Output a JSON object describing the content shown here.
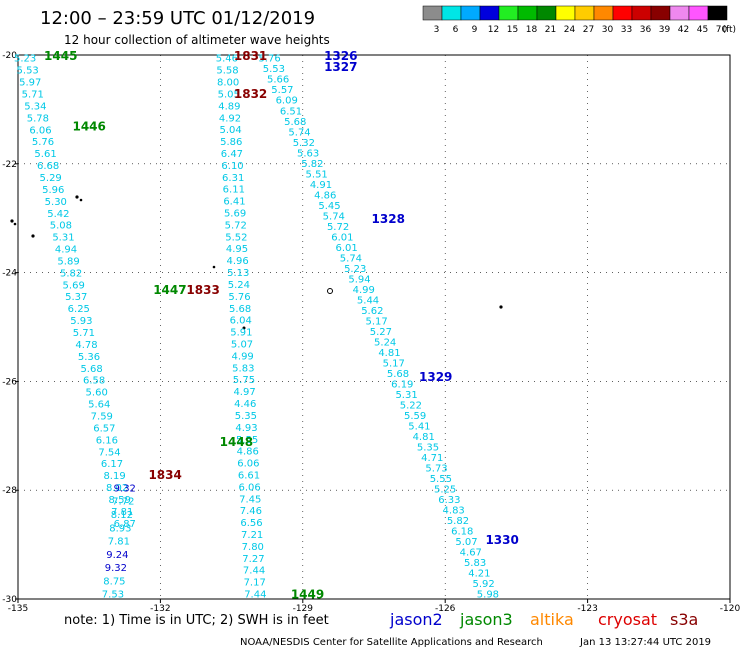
{
  "title": "12:00 – 23:59 UTC 01/12/2019",
  "subtitle": "12 hour collection of altimeter wave heights",
  "legend": {
    "unit": "(ft)",
    "items": [
      {
        "label": "3",
        "color": "#8c8c8c"
      },
      {
        "label": "6",
        "color": "#00e6e6"
      },
      {
        "label": "9",
        "color": "#00aaff"
      },
      {
        "label": "12",
        "color": "#0000dd"
      },
      {
        "label": "15",
        "color": "#22ee22"
      },
      {
        "label": "18",
        "color": "#00bb00"
      },
      {
        "label": "21",
        "color": "#008800"
      },
      {
        "label": "24",
        "color": "#ffff00"
      },
      {
        "label": "27",
        "color": "#ffcc00"
      },
      {
        "label": "30",
        "color": "#ff8800"
      },
      {
        "label": "33",
        "color": "#ff0000"
      },
      {
        "label": "36",
        "color": "#cc0000"
      },
      {
        "label": "39",
        "color": "#880000"
      },
      {
        "label": "42",
        "color": "#ee88ee"
      },
      {
        "label": "45",
        "color": "#ff55ff"
      },
      {
        "label": "70",
        "color": "#000000"
      }
    ]
  },
  "axes": {
    "lon_ticks": [
      "-135",
      "-132",
      "-129",
      "-126",
      "-123",
      "-120"
    ],
    "lat_ticks": [
      "-20",
      "-22",
      "-24",
      "-26",
      "-28",
      "-30"
    ]
  },
  "colors": {
    "cyan": "#00c8e6",
    "blue": "#0000cc",
    "green": "#008800",
    "darkred": "#880000",
    "orange": "#ff8800",
    "red": "#dd0000"
  },
  "pass_labels": [
    {
      "text": "1445",
      "color": "green",
      "x": -134.1,
      "y": -20.0
    },
    {
      "text": "1446",
      "color": "green",
      "x": -133.5,
      "y": -21.3
    },
    {
      "text": "1447",
      "color": "green",
      "x": -131.8,
      "y": -24.3
    },
    {
      "text": "1448",
      "color": "green",
      "x": -130.4,
      "y": -27.1
    },
    {
      "text": "1449",
      "color": "green",
      "x": -128.9,
      "y": -29.9
    },
    {
      "text": "1831",
      "color": "darkred",
      "x": -130.1,
      "y": -20.0
    },
    {
      "text": "1832",
      "color": "darkred",
      "x": -130.1,
      "y": -20.7
    },
    {
      "text": "1833",
      "color": "darkred",
      "x": -131.1,
      "y": -24.3
    },
    {
      "text": "1834",
      "color": "darkred",
      "x": -131.9,
      "y": -27.7
    },
    {
      "text": "1326",
      "color": "blue",
      "x": -128.2,
      "y": -20.0
    },
    {
      "text": "1327",
      "color": "blue",
      "x": -128.2,
      "y": -20.2
    },
    {
      "text": "1328",
      "color": "blue",
      "x": -127.2,
      "y": -23.0
    },
    {
      "text": "1329",
      "color": "blue",
      "x": -126.2,
      "y": -25.9
    },
    {
      "text": "1330",
      "color": "blue",
      "x": -124.8,
      "y": -28.9
    }
  ],
  "tracks": [
    {
      "name": "cryosat-north",
      "color": "cyan",
      "lon": [
        -130.6,
        -130.0
      ],
      "lat": [
        -20.05,
        -29.9
      ],
      "values": [
        "5.46",
        "5.58",
        "8.00",
        "5.05",
        "4.89",
        "4.92",
        "5.04",
        "5.86",
        "6.47",
        "6.10",
        "6.31",
        "6.11",
        "6.41",
        "5.69",
        "5.72",
        "5.52",
        "4.95",
        "4.96",
        "5.13",
        "5.24",
        "5.76",
        "5.68",
        "6.04",
        "5.91",
        "5.07",
        "4.99",
        "5.83",
        "5.75",
        "4.97",
        "4.46",
        "5.35",
        "4.93",
        "5.55",
        "4.86",
        "6.06",
        "6.61",
        "6.06",
        "7.45",
        "7.46",
        "6.56",
        "7.21",
        "7.80",
        "7.27",
        "7.44",
        "7.17",
        "7.44"
      ],
      "value_colors": {
        "7": "cyan"
      }
    },
    {
      "name": "jason3-a",
      "color": "cyan",
      "lon": [
        -134.85,
        -132.75
      ],
      "lat": [
        -20.05,
        -28.6
      ],
      "values": [
        "5.23",
        "5.53",
        "5.97",
        "5.71",
        "5.34",
        "5.78",
        "6.06",
        "5.76",
        "5.61",
        "6.68",
        "5.29",
        "5.96",
        "5.30",
        "5.42",
        "5.08",
        "5.31",
        "4.94",
        "5.89",
        "5.82",
        "5.69",
        "5.37",
        "6.25",
        "5.93",
        "5.71",
        "4.78",
        "5.36",
        "5.68",
        "6.58",
        "5.60",
        "5.64",
        "7.59",
        "6.57",
        "6.16",
        "7.54",
        "6.17",
        "8.19",
        "8.02",
        "8.59",
        "7.81",
        "6.87"
      ],
      "value_colors": {
        "33": "cyan"
      }
    },
    {
      "name": "jason2-a",
      "color": "blue",
      "lon": [
        -132.75,
        -133.0
      ],
      "lat": [
        -27.95,
        -29.9
      ],
      "values": [
        "9.32",
        "7.72",
        "8.12",
        "8.93",
        "7.81",
        "9.24",
        "9.32",
        "8.75",
        "7.53"
      ],
      "value_colors": {
        "0": "blue",
        "1": "cyan",
        "2": "cyan",
        "3": "cyan",
        "4": "cyan",
        "5": "blue",
        "6": "blue",
        "7": "cyan",
        "8": "cyan"
      }
    },
    {
      "name": "jason2-b",
      "color": "cyan",
      "lon": [
        -129.7,
        -125.1
      ],
      "lat": [
        -20.05,
        -29.9
      ],
      "values": [
        "5.76",
        "5.53",
        "5.66",
        "5.57",
        "6.09",
        "6.51",
        "5.68",
        "5.74",
        "5.32",
        "5.63",
        "5.82",
        "5.51",
        "4.91",
        "4.86",
        "5.45",
        "5.74",
        "5.72",
        "6.01",
        "6.01",
        "5.74",
        "5.23",
        "5.94",
        "4.99",
        "5.44",
        "5.62",
        "5.17",
        "5.27",
        "5.24",
        "4.81",
        "5.17",
        "5.68",
        "6.19",
        "5.31",
        "5.22",
        "5.59",
        "5.41",
        "4.81",
        "5.35",
        "4.71",
        "5.73",
        "5.55",
        "5.25",
        "6.33",
        "4.83",
        "5.82",
        "6.18",
        "5.07",
        "4.67",
        "5.83",
        "4.21",
        "5.92",
        "5.98"
      ],
      "value_colors": {}
    }
  ],
  "note": "note:  1) Time is in UTC;  2) SWH is in feet",
  "satellites": [
    {
      "name": "jason2",
      "color": "blue"
    },
    {
      "name": "jason3",
      "color": "green"
    },
    {
      "name": "altika",
      "color": "orange"
    },
    {
      "name": "cryosat",
      "color": "red"
    },
    {
      "name": "s3a",
      "color": "darkred"
    }
  ],
  "credit_left": "NOAA/NESDIS Center for Satellite Applications and Research",
  "credit_right": "Jan 13 13:27:44 UTC 2019"
}
